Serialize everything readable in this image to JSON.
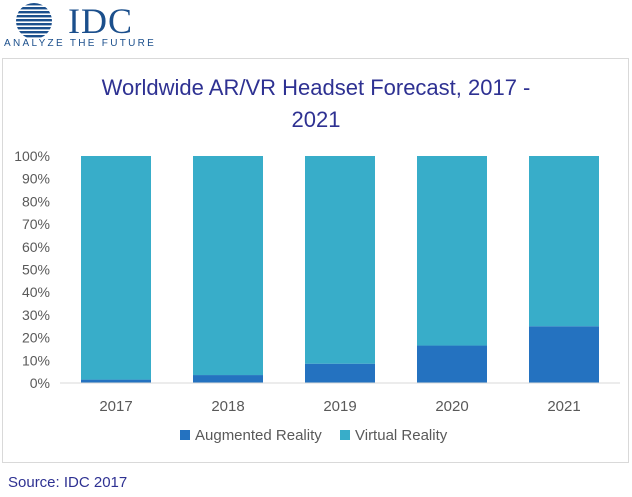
{
  "logo": {
    "name": "IDC",
    "tagline": "ANALYZE THE FUTURE"
  },
  "chart_data": {
    "type": "bar",
    "stacked": true,
    "percent": true,
    "title": "Worldwide AR/VR Headset Forecast, 2017 - 2021",
    "title_lines": [
      "Worldwide AR/VR Headset Forecast, 2017 -",
      "2021"
    ],
    "categories": [
      "2017",
      "2018",
      "2019",
      "2020",
      "2021"
    ],
    "series": [
      {
        "name": "Augmented Reality",
        "color": "#2472c0",
        "values": [
          1.5,
          3.5,
          8.5,
          16.5,
          25
        ]
      },
      {
        "name": "Virtual Reality",
        "color": "#38adc9",
        "values": [
          98.5,
          96.5,
          91.5,
          83.5,
          75
        ]
      }
    ],
    "ylim": [
      0,
      100
    ],
    "yticks": [
      "0%",
      "10%",
      "20%",
      "30%",
      "40%",
      "50%",
      "60%",
      "70%",
      "80%",
      "90%",
      "100%"
    ],
    "xlabel": "",
    "ylabel": "",
    "grid": false,
    "legend": "bottom"
  },
  "source": "Source: IDC 2017",
  "colors": {
    "title": "#2e3192",
    "brand": "#1b4f8c"
  }
}
